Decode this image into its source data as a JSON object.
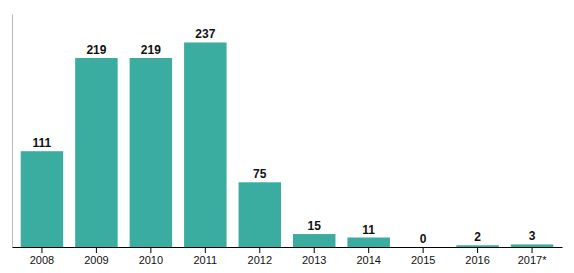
{
  "chart_data": {
    "type": "bar",
    "categories": [
      "2008",
      "2009",
      "2010",
      "2011",
      "2012",
      "2013",
      "2014",
      "2015",
      "2016",
      "2017*"
    ],
    "values": [
      111,
      219,
      219,
      237,
      75,
      15,
      11,
      0,
      2,
      3
    ],
    "color": "#3aada0",
    "ylim": [
      0,
      270
    ],
    "data_labels": true,
    "tick_labels": "x"
  }
}
